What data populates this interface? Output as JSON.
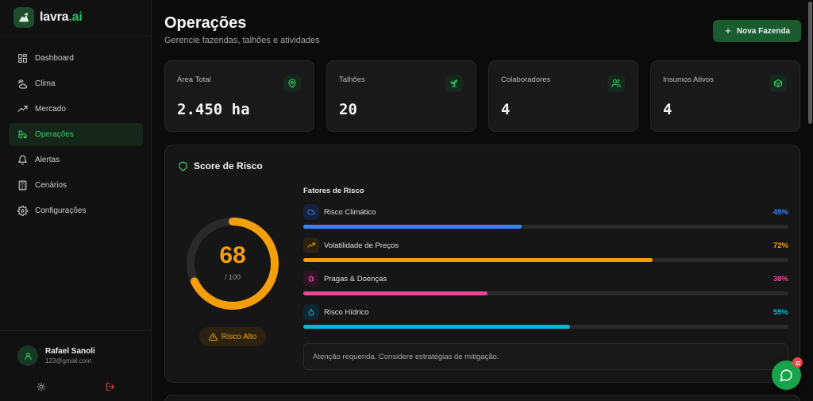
{
  "brand": {
    "name_prefix": "lavra",
    "name_suffix": ".ai",
    "logo_icon": "mountain-chart-icon"
  },
  "nav": {
    "items": [
      {
        "label": "Dashboard",
        "icon": "grid-icon",
        "active": false
      },
      {
        "label": "Clima",
        "icon": "sun-cloud-icon",
        "active": false
      },
      {
        "label": "Mercado",
        "icon": "trending-up-icon",
        "active": false
      },
      {
        "label": "Operações",
        "icon": "tractor-icon",
        "active": true
      },
      {
        "label": "Alertas",
        "icon": "bell-icon",
        "active": false
      },
      {
        "label": "Cenários",
        "icon": "calculator-icon",
        "active": false
      },
      {
        "label": "Configurações",
        "icon": "gear-icon",
        "active": false
      }
    ]
  },
  "user": {
    "name": "Rafael Sanoli",
    "email": "123@gmail.com"
  },
  "header": {
    "title": "Operações",
    "subtitle": "Gerencie fazendas, talhões e atividades",
    "new_farm_label": "Nova Fazenda"
  },
  "stats": [
    {
      "label": "Área Total",
      "value": "2.450 ha",
      "icon": "map-pin-icon"
    },
    {
      "label": "Talhões",
      "value": "20",
      "icon": "sprout-icon"
    },
    {
      "label": "Colaboradores",
      "value": "4",
      "icon": "users-icon"
    },
    {
      "label": "Insumos Ativos",
      "value": "4",
      "icon": "box-icon"
    }
  ],
  "risk": {
    "title": "Score de Risco",
    "score": "68",
    "max": "/ 100",
    "score_fraction": 0.68,
    "badge": "Risco Alto",
    "factors_title": "Fatores de Risco",
    "factors": [
      {
        "name": "Risco Climático",
        "pct": "45%",
        "value": 0.45,
        "color": "#3b82f6",
        "bg": "#16213a",
        "icon": "cloud-icon"
      },
      {
        "name": "Volatilidade de Preços",
        "pct": "72%",
        "value": 0.72,
        "color": "#f59e0b",
        "bg": "#2c2210",
        "icon": "trending-up-icon"
      },
      {
        "name": "Pragas & Doenças",
        "pct": "38%",
        "value": 0.38,
        "color": "#ec4899",
        "bg": "#2d1425",
        "icon": "bug-icon"
      },
      {
        "name": "Risco Hídrico",
        "pct": "55%",
        "value": 0.55,
        "color": "#06b6d4",
        "bg": "#0f2730",
        "icon": "droplet-icon"
      }
    ],
    "alert_text": "Atenção requerida. Considere estratégias de mitigação."
  },
  "colors": {
    "accent": "#22c55e",
    "primary_button": "#1a5c30",
    "warning": "#f59e0b"
  }
}
